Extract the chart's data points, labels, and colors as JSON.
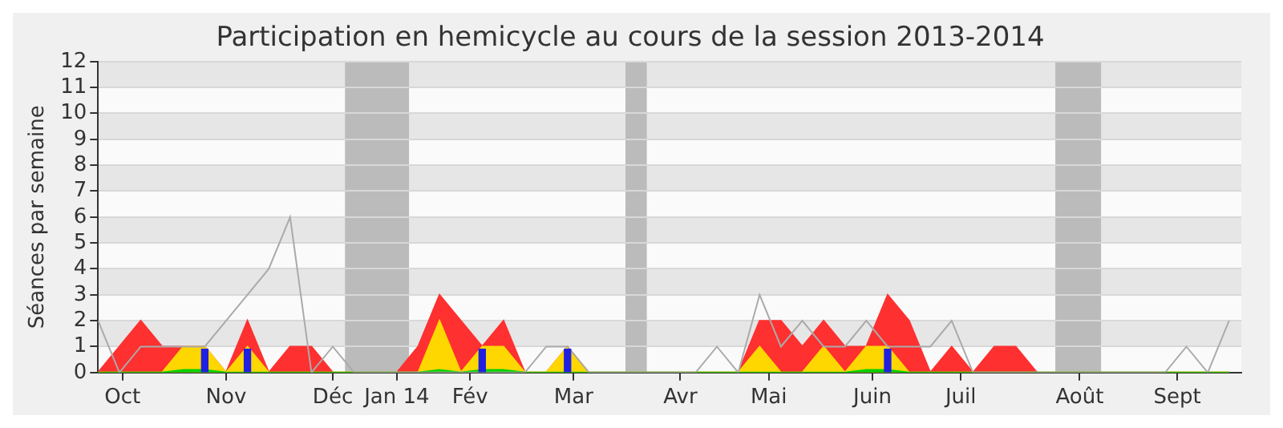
{
  "chart_data": {
    "type": "area",
    "title": "Participation en hemicycle au cours de la session 2013-2014",
    "ylabel": "Séances par semaine",
    "x": [
      "2013-09-30",
      "2013-10-07",
      "2013-10-14",
      "2013-10-21",
      "2013-10-28",
      "2013-11-04",
      "2013-11-11",
      "2013-11-18",
      "2013-11-25",
      "2013-12-02",
      "2013-12-09",
      "2013-12-16",
      "2013-12-23",
      "2013-12-30",
      "2014-01-06",
      "2014-01-13",
      "2014-01-20",
      "2014-01-27",
      "2014-02-03",
      "2014-02-10",
      "2014-02-17",
      "2014-02-24",
      "2014-03-03",
      "2014-03-10",
      "2014-03-17",
      "2014-03-24",
      "2014-03-31",
      "2014-04-07",
      "2014-04-14",
      "2014-04-21",
      "2014-04-28",
      "2014-05-05",
      "2014-05-12",
      "2014-05-19",
      "2014-05-26",
      "2014-06-02",
      "2014-06-09",
      "2014-06-16",
      "2014-06-23",
      "2014-06-30",
      "2014-07-07",
      "2014-07-14",
      "2014-07-21",
      "2014-07-28",
      "2014-08-04",
      "2014-08-11",
      "2014-08-18",
      "2014-08-25",
      "2014-09-01",
      "2014-09-08",
      "2014-09-15",
      "2014-09-22",
      "2014-09-29",
      "2014-10-06"
    ],
    "series": [
      {
        "type": "line",
        "color": "#aaaaaa",
        "values": [
          2,
          0,
          1,
          1,
          1,
          1,
          2,
          3,
          4,
          6,
          0,
          1,
          0,
          0,
          0,
          0,
          0,
          0,
          0,
          0,
          0,
          1,
          1,
          0,
          0,
          0,
          0,
          0,
          0,
          1,
          0,
          3,
          1,
          2,
          1,
          1,
          2,
          1,
          1,
          1,
          2,
          0,
          0,
          0,
          0,
          0,
          0,
          0,
          0,
          0,
          0,
          1,
          0,
          2
        ]
      },
      {
        "color": "#ff3030",
        "values": [
          0,
          1,
          2,
          1,
          1,
          1,
          0,
          2,
          0,
          1,
          1,
          0,
          0,
          0,
          0,
          1,
          3,
          2,
          1,
          2,
          0,
          0,
          1,
          0,
          0,
          0,
          0,
          0,
          0,
          0,
          0,
          2,
          2,
          1,
          2,
          1,
          1,
          3,
          2,
          0,
          1,
          0,
          1,
          1,
          0,
          0,
          0,
          0,
          0,
          0,
          0,
          0,
          0,
          0
        ]
      },
      {
        "color": "#ffd700",
        "values": [
          0,
          0,
          0,
          0,
          1,
          1,
          0,
          1,
          0,
          0,
          0,
          0,
          0,
          0,
          0,
          0,
          2,
          0,
          1,
          1,
          0,
          0,
          1,
          0,
          0,
          0,
          0,
          0,
          0,
          0,
          0,
          1,
          0,
          0,
          1,
          0,
          1,
          1,
          0,
          0,
          0,
          0,
          0,
          0,
          0,
          0,
          0,
          0,
          0,
          0,
          0,
          0,
          0,
          0
        ]
      },
      {
        "color": "#00d000",
        "values": [
          0,
          0,
          0,
          0,
          0.1,
          0.1,
          0,
          0,
          0,
          0,
          0,
          0,
          0,
          0,
          0,
          0,
          0.1,
          0,
          0.1,
          0.1,
          0,
          0,
          0,
          0,
          0,
          0,
          0,
          0,
          0,
          0,
          0,
          0,
          0,
          0,
          0,
          0,
          0.1,
          0.1,
          0,
          0,
          0,
          0,
          0,
          0,
          0,
          0,
          0,
          0,
          0,
          0,
          0,
          0,
          0,
          0
        ]
      },
      {
        "type": "bar",
        "color": "#2020e0",
        "values": [
          null,
          null,
          null,
          null,
          null,
          0.9,
          null,
          0.9,
          null,
          null,
          null,
          null,
          null,
          null,
          null,
          null,
          null,
          null,
          0.9,
          null,
          null,
          null,
          0.9,
          null,
          null,
          null,
          null,
          null,
          null,
          null,
          null,
          null,
          null,
          null,
          null,
          null,
          null,
          0.9,
          null,
          null,
          null,
          null,
          null,
          null,
          null,
          null,
          null,
          null,
          null,
          null,
          null,
          null,
          null,
          null
        ]
      }
    ],
    "xlim": [
      "2013-09-30",
      "2014-10-10"
    ],
    "xticks": [
      {
        "value": "2013-10-08",
        "label": "Oct"
      },
      {
        "value": "2013-11-11",
        "label": "Nov"
      },
      {
        "value": "2013-12-16",
        "label": "Déc"
      },
      {
        "value": "2014-01-06",
        "label": "Jan 14"
      },
      {
        "value": "2014-01-30",
        "label": "Fév"
      },
      {
        "value": "2014-03-05",
        "label": "Mar"
      },
      {
        "value": "2014-04-09",
        "label": "Avr"
      },
      {
        "value": "2014-05-08",
        "label": "Mai"
      },
      {
        "value": "2014-06-11",
        "label": "Juin"
      },
      {
        "value": "2014-07-10",
        "label": "Juil"
      },
      {
        "value": "2014-08-18",
        "label": "Août"
      },
      {
        "value": "2014-09-19",
        "label": "Sept"
      }
    ],
    "ylim": [
      0,
      12
    ],
    "yticks": [
      0,
      1,
      2,
      3,
      4,
      5,
      6,
      7,
      8,
      9,
      10,
      11,
      12
    ],
    "bands": [
      {
        "axis": "x",
        "from": "2013-12-20",
        "to": "2014-01-10",
        "color": "#bbbbbb"
      },
      {
        "axis": "x",
        "from": "2014-03-22",
        "to": "2014-03-29",
        "color": "#bbbbbb"
      },
      {
        "axis": "x",
        "from": "2014-08-10",
        "to": "2014-08-25",
        "color": "#bbbbbb"
      }
    ],
    "grid": "y",
    "legend": false
  }
}
